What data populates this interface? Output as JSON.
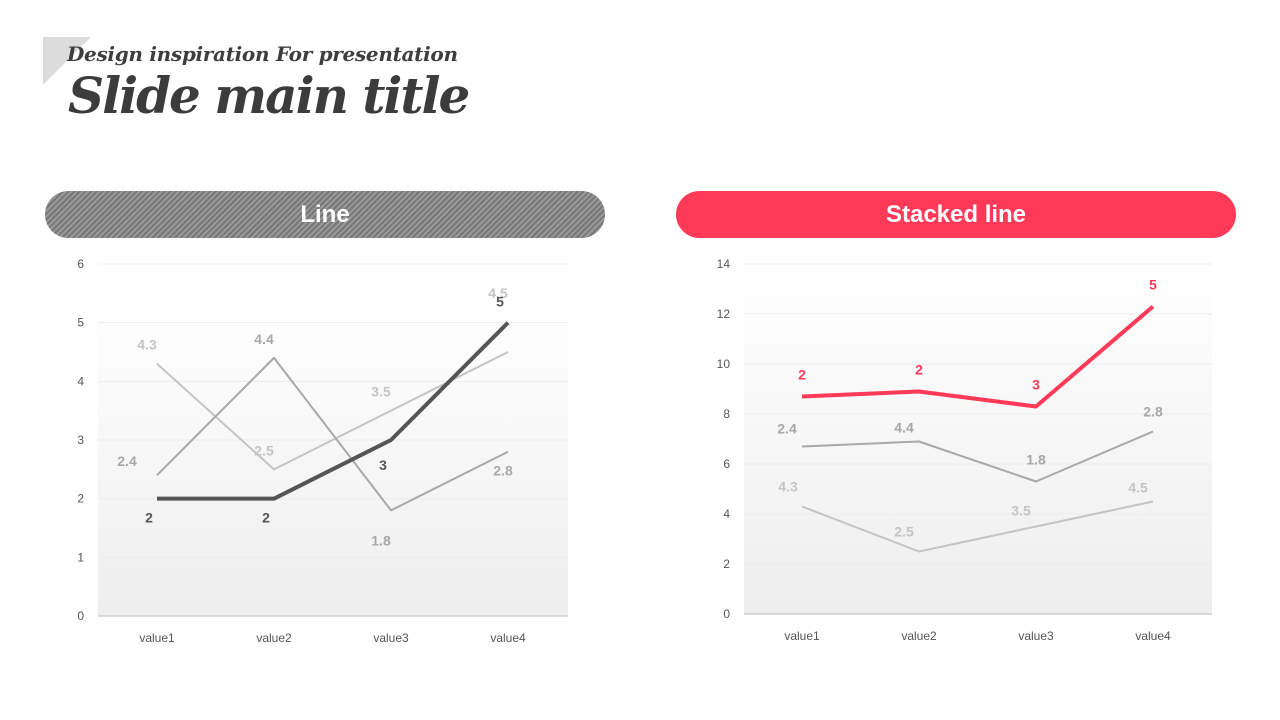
{
  "header": {
    "subtitle": "Design inspiration For presentation",
    "title": "Slide main title"
  },
  "panels": {
    "left_title": "Line",
    "right_title": "Stacked line"
  },
  "colors": {
    "accent": "#ff3a58",
    "dark": "#555555",
    "mid": "#9a9a9a",
    "light": "#bdbdbd"
  },
  "chart_data": [
    {
      "type": "line",
      "title": "Line",
      "categories": [
        "value1",
        "value2",
        "value3",
        "value4"
      ],
      "ylim": [
        0,
        6
      ],
      "yticks": [
        0,
        1,
        2,
        3,
        4,
        5,
        6
      ],
      "grid": true,
      "series": [
        {
          "values": [
            4.3,
            2.5,
            3.5,
            4.5
          ],
          "color": "#c4c4c4"
        },
        {
          "values": [
            2.4,
            4.4,
            1.8,
            2.8
          ],
          "color": "#a8a8a8"
        },
        {
          "values": [
            2,
            2,
            3,
            5
          ],
          "color": "#555555"
        }
      ]
    },
    {
      "type": "line",
      "stacked": true,
      "title": "Stacked line",
      "categories": [
        "value1",
        "value2",
        "value3",
        "value4"
      ],
      "ylim": [
        0,
        14
      ],
      "yticks": [
        0,
        2,
        4,
        6,
        8,
        10,
        12,
        14
      ],
      "grid": true,
      "series": [
        {
          "values": [
            4.3,
            2.5,
            3.5,
            4.5
          ],
          "color": "#c4c4c4"
        },
        {
          "values": [
            2.4,
            4.4,
            1.8,
            2.8
          ],
          "color": "#a8a8a8"
        },
        {
          "values": [
            2,
            2,
            3,
            5
          ],
          "color": "#ff3a58"
        }
      ]
    }
  ]
}
